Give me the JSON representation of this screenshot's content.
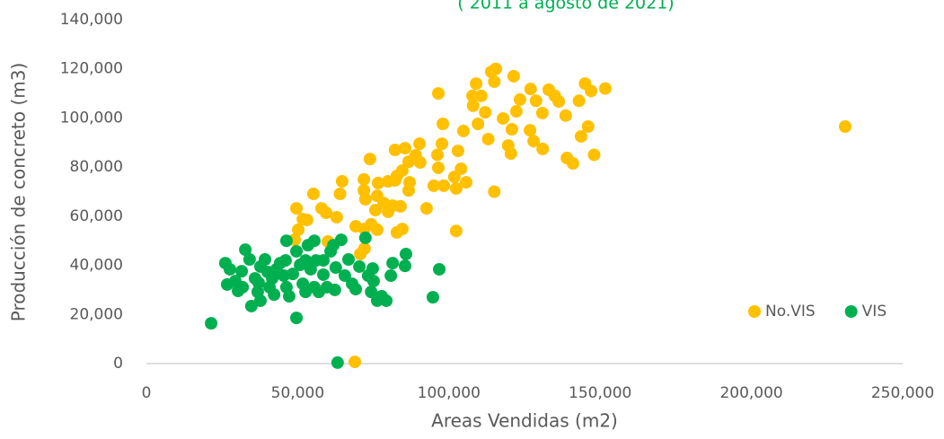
{
  "chart_data": {
    "type": "scatter",
    "subtitle": "( 2011 a agosto de 2021)",
    "xlabel": "Areas Vendidas (m2)",
    "ylabel": "Producción de concreto (m3)",
    "xlim": [
      0,
      250000
    ],
    "ylim": [
      0,
      140000
    ],
    "xticks": [
      0,
      {
        "value": 50000,
        "label": "50,000"
      },
      {
        "value": 100000,
        "label": "100,000"
      },
      {
        "value": 150000,
        "label": "150,000"
      },
      {
        "value": 200000,
        "label": "200,000"
      },
      {
        "value": 250000,
        "label": "250,000"
      }
    ],
    "yticks": [
      0,
      {
        "value": 20000,
        "label": "20,000"
      },
      {
        "value": 40000,
        "label": "40,000"
      },
      {
        "value": 60000,
        "label": "60,000"
      },
      {
        "value": 80000,
        "label": "80,000"
      },
      {
        "value": 100000,
        "label": "100,000"
      },
      {
        "value": 120000,
        "label": "120,000"
      },
      {
        "value": 140000,
        "label": "140,000"
      }
    ],
    "grid": false,
    "legend": "lower right",
    "series": [
      {
        "name": "No.VIS",
        "color": "#FFC000",
        "x": [
          231000,
          151700,
          146000,
          147000,
          145000,
          143700,
          148000,
          141000,
          139000,
          138600,
          143000,
          136300,
          135000,
          133000,
          130900,
          128800,
          127000,
          128000,
          126800,
          131000,
          123500,
          122300,
          121400,
          120800,
          119600,
          120500,
          117900,
          115500,
          114000,
          115000,
          112000,
          113000,
          110700,
          109000,
          107800,
          108000,
          109600,
          104800,
          103000,
          104000,
          101800,
          105700,
          102400,
          115000,
          102400,
          96500,
          98000,
          97700,
          96200,
          96500,
          95000,
          98300,
          92600,
          90300,
          89000,
          90500,
          86700,
          85500,
          82200,
          84600,
          82800,
          87000,
          86700,
          82200,
          79900,
          76600,
          76300,
          78400,
          79900,
          75700,
          81400,
          84000,
          73900,
          71900,
          71900,
          72400,
          74300,
          72100,
          76300,
          69200,
          70700,
          64700,
          64000,
          55200,
          57900,
          59400,
          62900,
          53100,
          49600,
          51700,
          50200,
          84600,
          82800,
          68900,
          60000,
          49000,
          72100
        ],
        "values": [
          96500,
          112000,
          96500,
          111000,
          114000,
          92500,
          85000,
          81500,
          83700,
          101000,
          107000,
          106700,
          109000,
          111500,
          102000,
          107000,
          111800,
          90600,
          95000,
          87400,
          107500,
          102700,
          117000,
          95400,
          88800,
          85500,
          99800,
          120000,
          118800,
          114800,
          102300,
          91400,
          109000,
          114000,
          109000,
          105000,
          97600,
          94700,
          86600,
          79300,
          76000,
          73800,
          71300,
          70000,
          54000,
          110000,
          97600,
          89500,
          85000,
          79700,
          72400,
          72400,
          63200,
          89500,
          84800,
          81900,
          82200,
          87700,
          87000,
          78600,
          76400,
          73800,
          70500,
          74600,
          74200,
          73500,
          68300,
          65400,
          61800,
          62500,
          64300,
          64000,
          83300,
          75000,
          70500,
          66900,
          56700,
          54800,
          54500,
          55900,
          44600,
          74200,
          69100,
          69100,
          63200,
          61400,
          59600,
          58500,
          63200,
          58800,
          54500,
          54800,
          53400,
          700,
          49700,
          50400,
          46800
        ]
      },
      {
        "name": "VIS",
        "color": "#00B050",
        "x": [
          21400,
          26100,
          27600,
          26700,
          29400,
          30300,
          31500,
          32700,
          34100,
          34700,
          35900,
          36800,
          37700,
          39200,
          40100,
          40700,
          41600,
          43000,
          44200,
          45400,
          46000,
          46300,
          47200,
          48400,
          49600,
          49600,
          50800,
          51700,
          53400,
          54300,
          55500,
          56100,
          57000,
          58500,
          59700,
          60900,
          61800,
          62600,
          62300,
          64400,
          63200,
          65600,
          66800,
          68000,
          69200,
          70400,
          72400,
          73300,
          74300,
          74800,
          75100,
          76300,
          77800,
          79300,
          80800,
          81400,
          85500,
          85800,
          94700,
          96800,
          37700,
          42200,
          52600,
          55500,
          58500,
          52600,
          46300,
          37100,
          31800
        ],
        "values": [
          16400,
          40900,
          38400,
          32200,
          33600,
          29600,
          37600,
          46400,
          42400,
          23400,
          34700,
          29200,
          39500,
          42400,
          37300,
          31100,
          34700,
          38400,
          40900,
          35800,
          42000,
          50000,
          27400,
          36500,
          45700,
          18600,
          40200,
          32500,
          48200,
          38400,
          50000,
          42000,
          29200,
          36200,
          31100,
          45700,
          48200,
          39100,
          30000,
          50400,
          400,
          35800,
          42400,
          32500,
          30300,
          39500,
          51200,
          35800,
          29200,
          38700,
          33600,
          25600,
          27400,
          25600,
          35800,
          40900,
          39800,
          44600,
          27000,
          38400,
          25600,
          28100,
          29200,
          31100,
          42000,
          42000,
          31100,
          32900,
          31100
        ]
      }
    ]
  }
}
